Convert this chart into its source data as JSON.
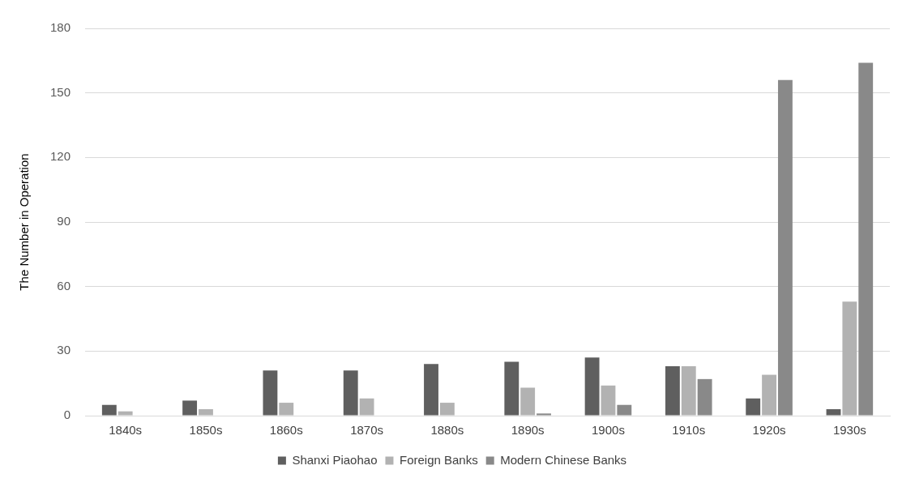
{
  "chart_data": {
    "type": "bar",
    "ylabel": "The Number in Operation",
    "categories": [
      "1840s",
      "1850s",
      "1860s",
      "1870s",
      "1880s",
      "1890s",
      "1900s",
      "1910s",
      "1920s",
      "1930s"
    ],
    "series": [
      {
        "name": "Shanxi Piaohao",
        "color": "#5f5f5f",
        "values": [
          5,
          7,
          21,
          21,
          24,
          25,
          27,
          23,
          8,
          3
        ]
      },
      {
        "name": "Foreign Banks",
        "color": "#b2b2b2",
        "values": [
          2,
          3,
          6,
          8,
          6,
          13,
          14,
          23,
          19,
          53
        ]
      },
      {
        "name": "Modern Chinese Banks",
        "color": "#898989",
        "values": [
          0,
          0,
          0,
          0,
          0,
          1,
          5,
          17,
          156,
          164
        ]
      }
    ],
    "ylim": [
      0,
      180
    ],
    "yticks": [
      0,
      30,
      60,
      90,
      120,
      150,
      180
    ],
    "grid": "y",
    "legend": "bottom"
  }
}
